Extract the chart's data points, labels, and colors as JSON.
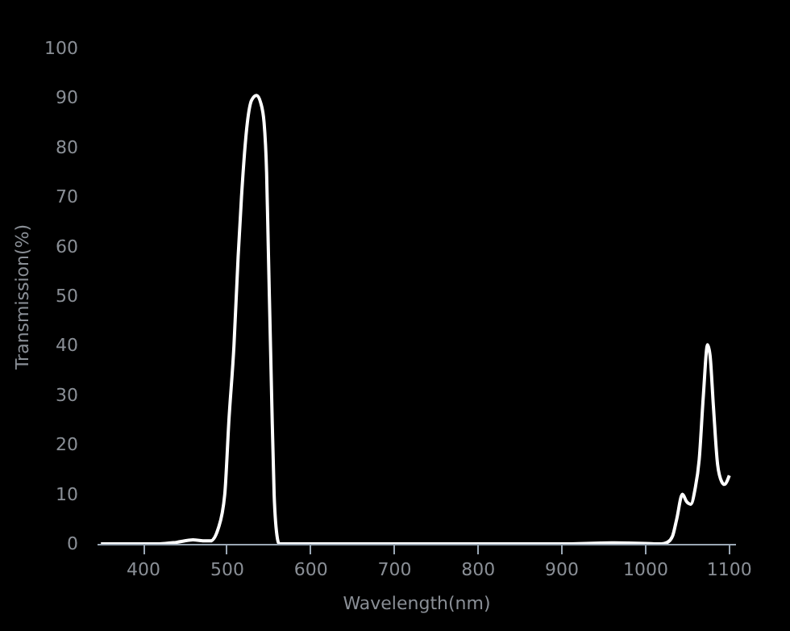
{
  "chart_data": {
    "type": "line",
    "xlabel": "Wavelength(nm)",
    "ylabel": "Transmission(%)",
    "xlim": [
      345,
      1108
    ],
    "ylim": [
      0,
      100
    ],
    "xticks": [
      400,
      500,
      600,
      700,
      800,
      900,
      1000,
      1100
    ],
    "yticks": [
      0,
      10,
      20,
      30,
      40,
      50,
      60,
      70,
      80,
      90,
      100
    ],
    "grid": false,
    "marker": "none",
    "line_style": "solid",
    "x": [
      350,
      420,
      440,
      460,
      475,
      481,
      490,
      498,
      503,
      509,
      514,
      518,
      525,
      530,
      536,
      541,
      545,
      548,
      550,
      554,
      557,
      561,
      563,
      600,
      700,
      800,
      900,
      960,
      1000,
      1020,
      1027,
      1033,
      1038,
      1045,
      1050,
      1055,
      1060,
      1065,
      1070,
      1075,
      1078,
      1082,
      1087,
      1092,
      1095,
      1101
    ],
    "series": [
      {
        "color": "#ffffff",
        "values": [
          0,
          0,
          0.3,
          0.8,
          0.6,
          0.6,
          3,
          10,
          25,
          40,
          58,
          70,
          85,
          89.5,
          90.5,
          89,
          85,
          75,
          60,
          30,
          10,
          1,
          0,
          0,
          0,
          0,
          0,
          0.2,
          0.1,
          0,
          0.3,
          1.5,
          4.9,
          10,
          8.5,
          8,
          11,
          17,
          30,
          40.2,
          38,
          27.7,
          16,
          12.5,
          12,
          13.8
        ]
      }
    ]
  }
}
